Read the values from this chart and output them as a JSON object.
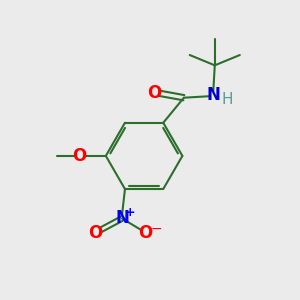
{
  "bg_color": "#ebebeb",
  "bond_color": "#2d6e2d",
  "atom_colors": {
    "O": "#ff0000",
    "N_amide": "#0000cc",
    "N_nitro": "#0000ff",
    "H": "#5a9a9a",
    "plus": "#0000ff",
    "minus": "#ff0000"
  },
  "font_size_atoms": 11,
  "font_size_charge": 8,
  "line_width": 1.5
}
